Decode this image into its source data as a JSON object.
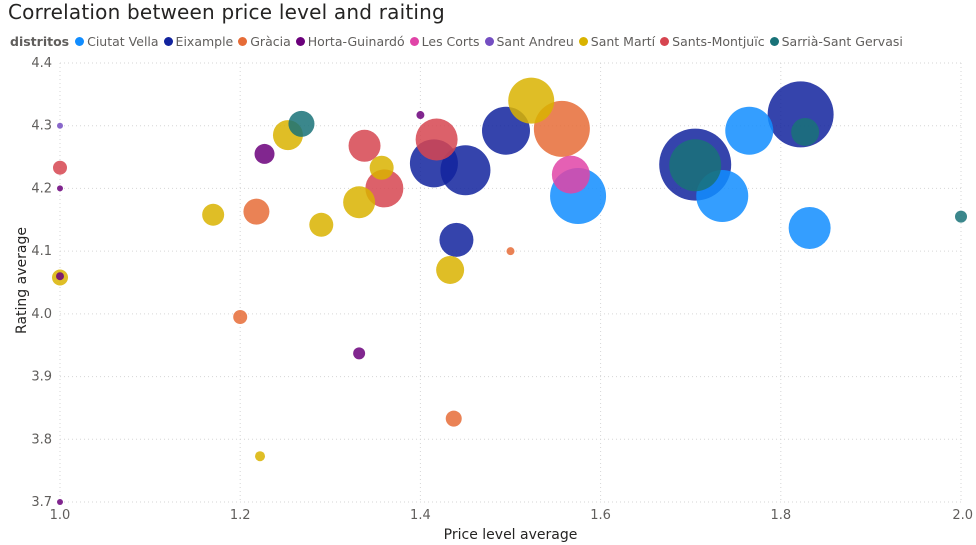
{
  "chart_data": {
    "type": "scatter",
    "title": "Correlation between price level and raiting",
    "legend_title": "distritos",
    "legend_position": "top-left",
    "xlabel": "Price level average",
    "ylabel": "Rating average",
    "xlim": [
      1.0,
      2.0
    ],
    "ylim": [
      3.7,
      4.4
    ],
    "xticks": [
      "1.0",
      "1.2",
      "1.4",
      "1.6",
      "1.8",
      "2.0"
    ],
    "yticks": [
      "3.7",
      "3.8",
      "3.9",
      "4.0",
      "4.1",
      "4.2",
      "4.3",
      "4.4"
    ],
    "grid": true,
    "series": [
      {
        "name": "Ciutat Vella",
        "color": "#118DFF",
        "points": [
          {
            "x": 1.575,
            "y": 4.188,
            "size": 28
          },
          {
            "x": 1.735,
            "y": 4.188,
            "size": 26
          },
          {
            "x": 1.765,
            "y": 4.292,
            "size": 24
          },
          {
            "x": 1.832,
            "y": 4.137,
            "size": 21
          }
        ]
      },
      {
        "name": "Eixample",
        "color": "#12239E",
        "points": [
          {
            "x": 1.705,
            "y": 4.238,
            "size": 36
          },
          {
            "x": 1.822,
            "y": 4.318,
            "size": 33
          },
          {
            "x": 1.495,
            "y": 4.292,
            "size": 24
          },
          {
            "x": 1.45,
            "y": 4.229,
            "size": 25
          },
          {
            "x": 1.415,
            "y": 4.24,
            "size": 24
          },
          {
            "x": 1.44,
            "y": 4.118,
            "size": 17
          }
        ]
      },
      {
        "name": "Gràcia",
        "color": "#E66C37",
        "points": [
          {
            "x": 1.557,
            "y": 4.295,
            "size": 28
          },
          {
            "x": 1.218,
            "y": 4.163,
            "size": 13
          },
          {
            "x": 1.2,
            "y": 3.995,
            "size": 7
          },
          {
            "x": 1.437,
            "y": 3.833,
            "size": 8
          },
          {
            "x": 1.5,
            "y": 4.1,
            "size": 4
          }
        ]
      },
      {
        "name": "Horta-Guinardó",
        "color": "#6B007B",
        "points": [
          {
            "x": 1.227,
            "y": 4.255,
            "size": 10
          },
          {
            "x": 1.332,
            "y": 3.937,
            "size": 6
          },
          {
            "x": 1.4,
            "y": 4.317,
            "size": 4
          },
          {
            "x": 1.0,
            "y": 4.2,
            "size": 3
          },
          {
            "x": 1.0,
            "y": 4.06,
            "size": 4
          },
          {
            "x": 1.0,
            "y": 3.7,
            "size": 3
          }
        ]
      },
      {
        "name": "Les Corts",
        "color": "#E044A7",
        "points": [
          {
            "x": 1.567,
            "y": 4.222,
            "size": 19
          }
        ]
      },
      {
        "name": "Sant Andreu",
        "color": "#744EC2",
        "points": [
          {
            "x": 1.0,
            "y": 4.3,
            "size": 3
          }
        ]
      },
      {
        "name": "Sant Martí",
        "color": "#D9B300",
        "points": [
          {
            "x": 1.523,
            "y": 4.34,
            "size": 23
          },
          {
            "x": 1.253,
            "y": 4.285,
            "size": 15
          },
          {
            "x": 1.332,
            "y": 4.178,
            "size": 16
          },
          {
            "x": 1.357,
            "y": 4.233,
            "size": 12
          },
          {
            "x": 1.17,
            "y": 4.158,
            "size": 11
          },
          {
            "x": 1.29,
            "y": 4.142,
            "size": 12
          },
          {
            "x": 1.433,
            "y": 4.07,
            "size": 14
          },
          {
            "x": 1.0,
            "y": 4.058,
            "size": 8
          },
          {
            "x": 1.222,
            "y": 3.773,
            "size": 5
          }
        ]
      },
      {
        "name": "Sants-Montjuïc",
        "color": "#D64550",
        "points": [
          {
            "x": 1.418,
            "y": 4.278,
            "size": 21
          },
          {
            "x": 1.36,
            "y": 4.2,
            "size": 19
          },
          {
            "x": 1.338,
            "y": 4.268,
            "size": 16
          },
          {
            "x": 1.0,
            "y": 4.233,
            "size": 7
          }
        ]
      },
      {
        "name": "Sarrià-Sant Gervasi",
        "color": "#197278",
        "points": [
          {
            "x": 1.705,
            "y": 4.237,
            "size": 26
          },
          {
            "x": 1.827,
            "y": 4.29,
            "size": 14
          },
          {
            "x": 1.268,
            "y": 4.303,
            "size": 13
          },
          {
            "x": 2.0,
            "y": 4.155,
            "size": 6
          }
        ]
      }
    ]
  }
}
